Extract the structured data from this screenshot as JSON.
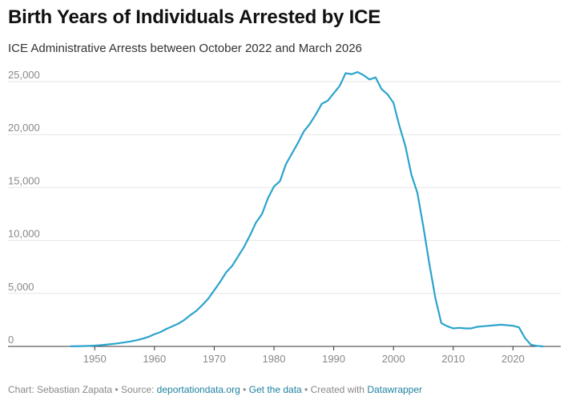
{
  "header": {
    "title": "Birth Years of Individuals Arrested by ICE",
    "subtitle": "ICE Administrative Arrests between October 2022 and March 2026"
  },
  "footer": {
    "chart_by": "Chart: Sebastian Zapata",
    "source_prefix": "Source:",
    "source_link": "deportationdata.org",
    "get_data": "Get the data",
    "created_with": "Created with",
    "tool_link": "Datawrapper",
    "separator": "•",
    "link_color": "#1d81a2"
  },
  "chart_data": {
    "type": "line",
    "title": "Birth Years of Individuals Arrested by ICE",
    "subtitle": "ICE Administrative Arrests between October 2022 and March 2026",
    "xlabel": "",
    "ylabel": "",
    "xlim": [
      1943,
      2028
    ],
    "ylim": [
      0,
      25000
    ],
    "x_ticks": [
      1950,
      1960,
      1970,
      1980,
      1990,
      2000,
      2010,
      2020
    ],
    "y_ticks": [
      0,
      5000,
      10000,
      15000,
      20000,
      25000
    ],
    "y_tick_labels": [
      "0",
      "5,000",
      "10,000",
      "15,000",
      "20,000",
      "25,000"
    ],
    "grid": "horizontal",
    "line_color": "#2ba3cc",
    "series": [
      {
        "x": [
          1946,
          1947,
          1948,
          1949,
          1950,
          1951,
          1952,
          1953,
          1954,
          1955,
          1956,
          1957,
          1958,
          1959,
          1960,
          1961,
          1962,
          1963,
          1964,
          1965,
          1966,
          1967,
          1968,
          1969,
          1970,
          1971,
          1972,
          1973,
          1974,
          1975,
          1976,
          1977,
          1978,
          1979,
          1980,
          1981,
          1982,
          1983,
          1984,
          1985,
          1986,
          1987,
          1988,
          1989,
          1990,
          1991,
          1992,
          1993,
          1994,
          1995,
          1996,
          1997,
          1998,
          1999,
          2000,
          2001,
          2002,
          2003,
          2004,
          2005,
          2006,
          2007,
          2008,
          2009,
          2010,
          2011,
          2012,
          2013,
          2014,
          2015,
          2016,
          2017,
          2018,
          2019,
          2020,
          2021,
          2022,
          2023,
          2024,
          2025
        ],
        "values": [
          10,
          20,
          30,
          50,
          80,
          120,
          170,
          230,
          300,
          380,
          470,
          580,
          720,
          900,
          1150,
          1350,
          1650,
          1900,
          2150,
          2500,
          2950,
          3350,
          3900,
          4500,
          5300,
          6100,
          7000,
          7600,
          8500,
          9400,
          10500,
          11700,
          12500,
          14000,
          15100,
          15600,
          17200,
          18200,
          19200,
          20300,
          21000,
          21900,
          22900,
          23200,
          23900,
          24600,
          25800,
          25700,
          25900,
          25600,
          25200,
          25400,
          24300,
          23800,
          23000,
          20800,
          18900,
          16200,
          14500,
          11300,
          7800,
          4600,
          2200,
          1900,
          1700,
          1750,
          1700,
          1700,
          1850,
          1900,
          1950,
          2000,
          2050,
          2000,
          1950,
          1800,
          800,
          150,
          50,
          0
        ]
      }
    ]
  }
}
